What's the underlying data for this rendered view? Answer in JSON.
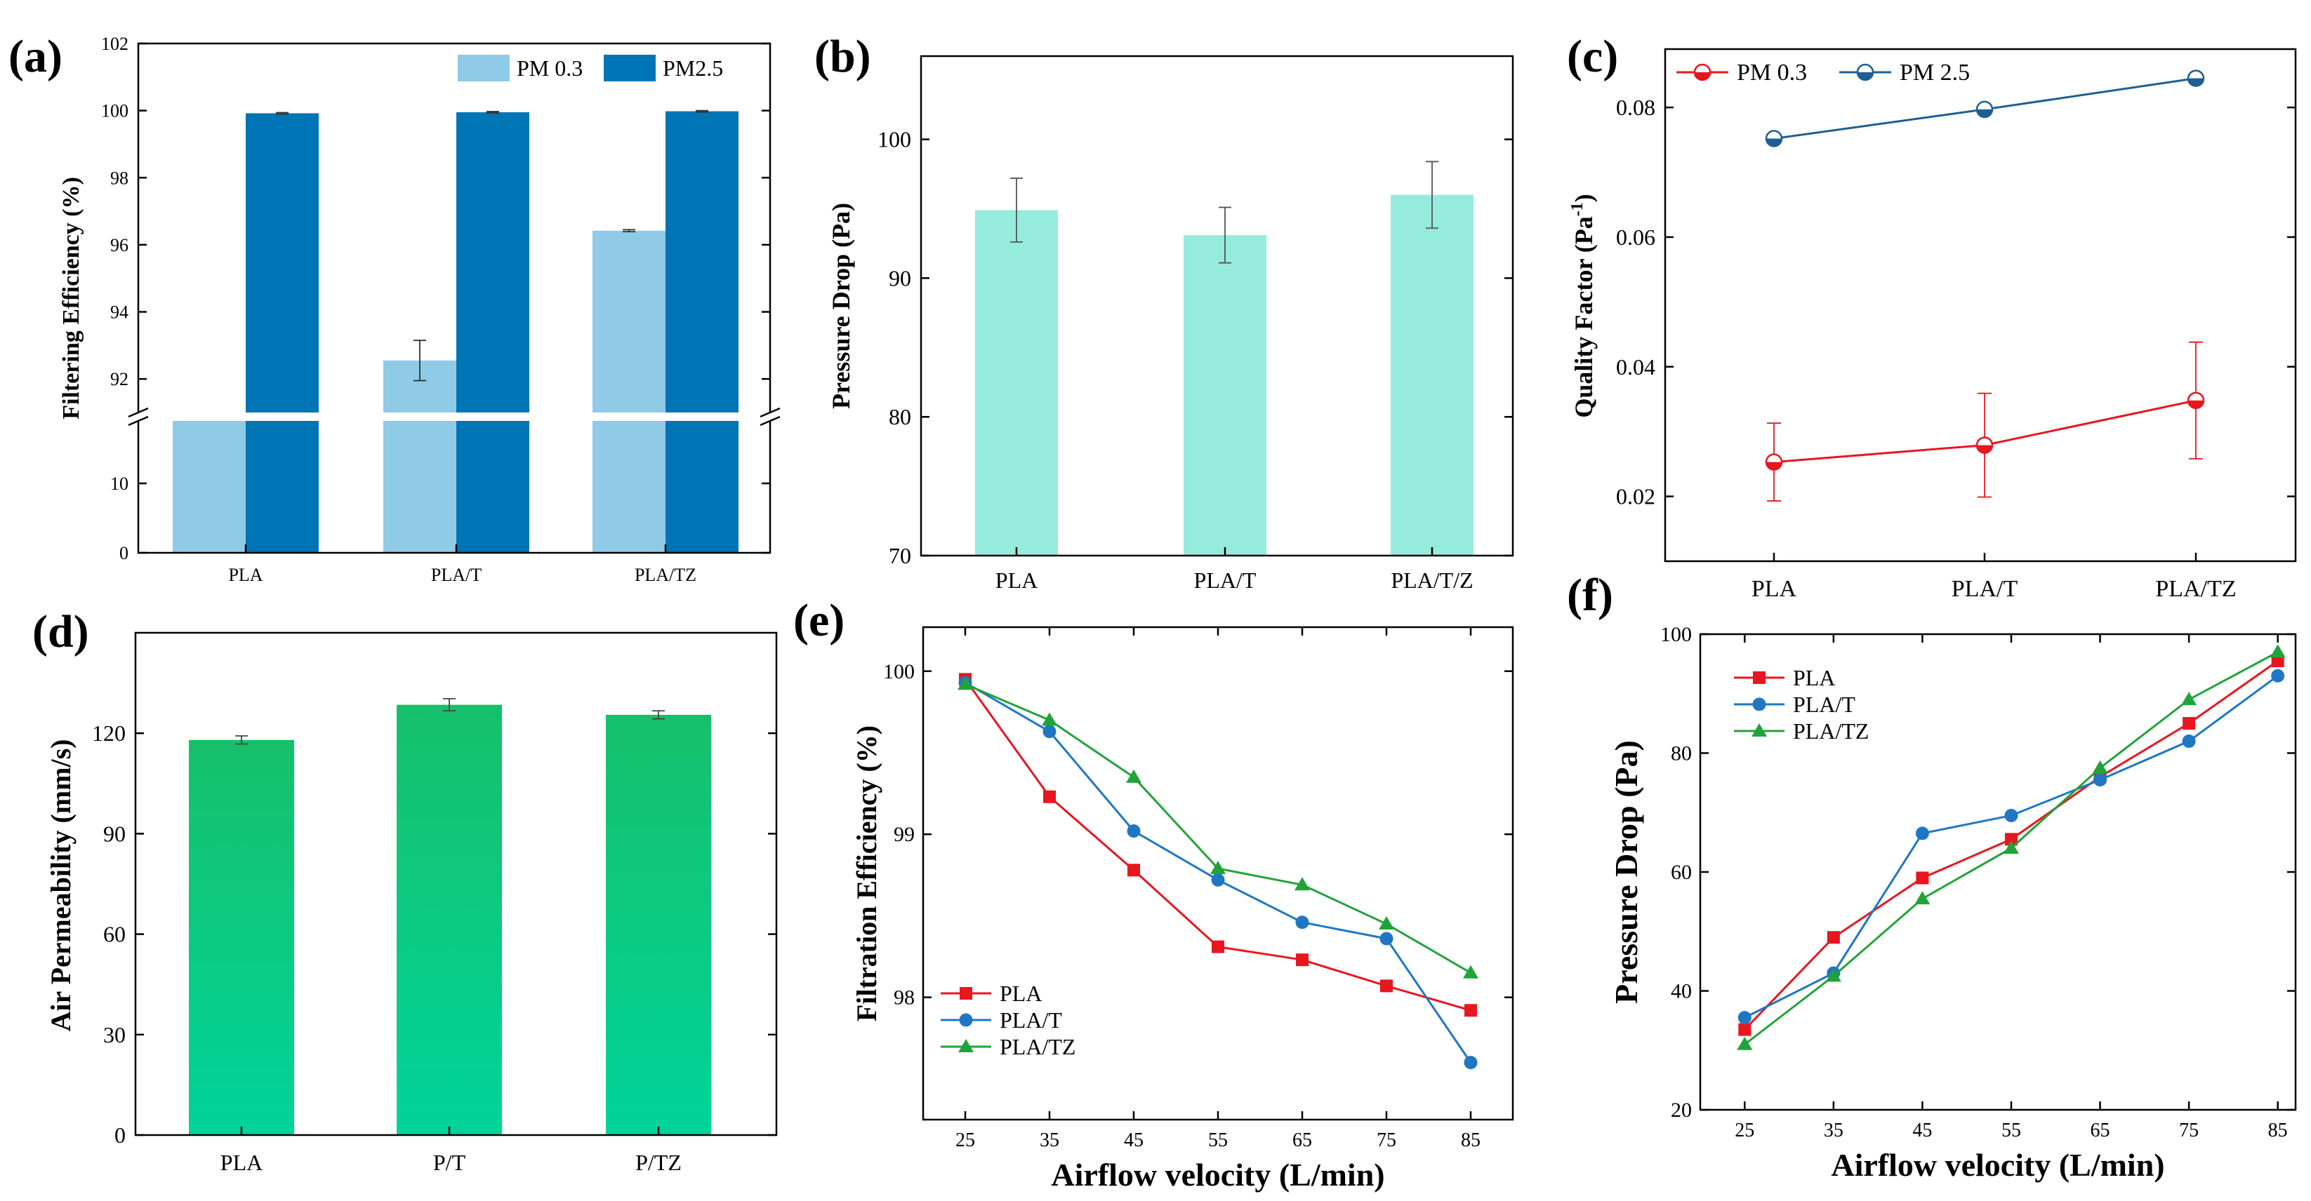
{
  "figure": {
    "panel_labels": [
      "(a)",
      "(b)",
      "(c)",
      "(d)",
      "(e)",
      "(f)"
    ]
  },
  "chart_data": [
    {
      "panel": "(a)",
      "type": "bar",
      "broken_axis": true,
      "ylabel": "Filtering Efficiency (%)",
      "categories": [
        "PLA",
        "PLA/T",
        "PLA/TZ"
      ],
      "series": [
        {
          "name": "PM 0.3",
          "values": [
            90.9,
            92.55,
            96.42
          ],
          "errors": [
            0.05,
            0.6,
            0.03
          ],
          "color": "#8fcbe6"
        },
        {
          "name": "PM2.5",
          "values": [
            99.92,
            99.95,
            99.98
          ],
          "errors": [
            0.02,
            0.02,
            0.02
          ],
          "color": "#0075b5"
        }
      ],
      "upper_ylim": [
        91,
        102
      ],
      "upper_ticks": [
        92,
        94,
        96,
        98,
        100,
        102
      ],
      "lower_ylim": [
        0,
        19
      ],
      "lower_ticks": [
        0,
        10
      ]
    },
    {
      "panel": "(b)",
      "type": "bar",
      "ylabel": "Pressure Drop (Pa)",
      "categories": [
        "PLA",
        "PLA/T",
        "PLA/T/Z"
      ],
      "values": [
        94.9,
        93.1,
        96.0
      ],
      "errors": [
        2.3,
        2.0,
        2.4
      ],
      "color": "#95ecdc",
      "ylim": [
        70,
        106
      ],
      "ticks": [
        70,
        80,
        90,
        100
      ]
    },
    {
      "panel": "(c)",
      "type": "line",
      "ylabel": "Quality Factor (Pa",
      "ylabel_sup": "-1",
      "ylabel_close": ")",
      "categories": [
        "PLA",
        "PLA/T",
        "PLA/TZ"
      ],
      "series": [
        {
          "name": "PM 0.3",
          "values": [
            0.0253,
            0.0279,
            0.0348
          ],
          "errors": [
            0.006,
            0.008,
            0.009
          ],
          "color": "#e8161f"
        },
        {
          "name": "PM 2.5",
          "values": [
            0.0752,
            0.0797,
            0.0845
          ],
          "errors": [
            0,
            0,
            0
          ],
          "color": "#1d5f94"
        }
      ],
      "ylim": [
        0.01,
        0.089
      ],
      "ticks": [
        "0.02",
        "0.04",
        "0.06",
        "0.08"
      ]
    },
    {
      "panel": "(d)",
      "type": "bar",
      "ylabel": "Air Permeability (mm/s)",
      "categories": [
        "PLA",
        "P/T",
        "P/TZ"
      ],
      "values": [
        118,
        128.5,
        125.5
      ],
      "errors": [
        1.2,
        1.8,
        1.2
      ],
      "color_top": "#16c06a",
      "color_bottom": "#00d49a",
      "ylim": [
        0,
        150
      ],
      "ticks": [
        0,
        30,
        60,
        90,
        120
      ]
    },
    {
      "panel": "(e)",
      "type": "line",
      "xlabel": "Airflow velocity (L/min)",
      "ylabel": "Filtration Efficiency (%)",
      "x": [
        25,
        35,
        45,
        55,
        65,
        75,
        85
      ],
      "series": [
        {
          "name": "PLA",
          "values": [
            99.95,
            99.23,
            98.78,
            98.31,
            98.23,
            98.07,
            97.92
          ],
          "color": "#e8161f",
          "marker": "square"
        },
        {
          "name": "PLA/T",
          "values": [
            99.93,
            99.63,
            99.02,
            98.72,
            98.46,
            98.36,
            97.6
          ],
          "color": "#1f77c4",
          "marker": "circle"
        },
        {
          "name": "PLA/TZ",
          "values": [
            99.92,
            99.7,
            99.35,
            98.79,
            98.69,
            98.45,
            98.15
          ],
          "color": "#22a33a",
          "marker": "triangle"
        }
      ],
      "xlim": [
        20,
        90
      ],
      "ylim": [
        97.25,
        100.27
      ],
      "xticks": [
        25,
        35,
        45,
        55,
        65,
        75,
        85
      ],
      "yticks": [
        "98",
        "99",
        "100"
      ]
    },
    {
      "panel": "(f)",
      "type": "line",
      "xlabel": "Airflow velocity (L/min)",
      "ylabel": "Pressure Drop (Pa)",
      "x": [
        25,
        35,
        45,
        55,
        65,
        75,
        85
      ],
      "series": [
        {
          "name": "PLA",
          "values": [
            33.5,
            49,
            59,
            65.5,
            76,
            85,
            95.5
          ],
          "color": "#e8161f",
          "marker": "square"
        },
        {
          "name": "PLA/T",
          "values": [
            35.5,
            43,
            66.5,
            69.5,
            75.5,
            82,
            93
          ],
          "color": "#1f77c4",
          "marker": "circle"
        },
        {
          "name": "PLA/TZ",
          "values": [
            31,
            42.5,
            55.5,
            64,
            77.5,
            89,
            97
          ],
          "color": "#22a33a",
          "marker": "triangle"
        }
      ],
      "xlim": [
        20,
        87
      ],
      "ylim": [
        20,
        100
      ],
      "xticks": [
        25,
        35,
        45,
        55,
        65,
        75,
        85
      ],
      "yticks": [
        "20",
        "40",
        "60",
        "80",
        "100"
      ]
    }
  ]
}
